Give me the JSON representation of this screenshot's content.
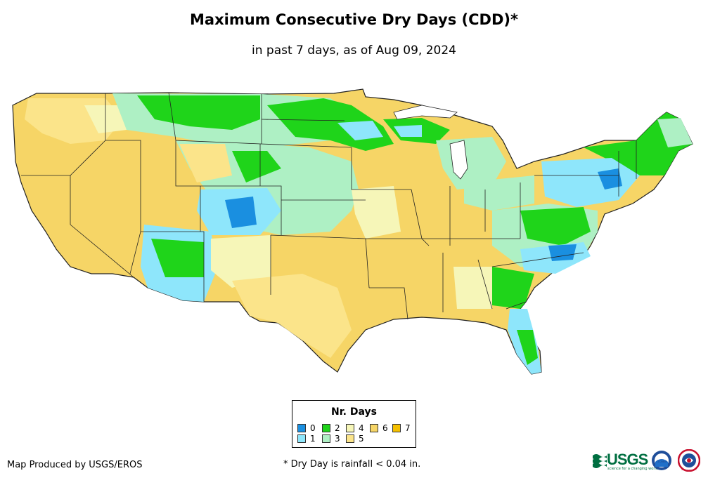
{
  "title": "Maximum Consecutive Dry Days (CDD)*",
  "subtitle": "in past 7 days, as of Aug 09, 2024",
  "legend": {
    "title": "Nr. Days",
    "items": [
      {
        "label": "0",
        "color": "#1a8fe0"
      },
      {
        "label": "1",
        "color": "#8ee6fb"
      },
      {
        "label": "2",
        "color": "#1fd41a"
      },
      {
        "label": "3",
        "color": "#aef0c4"
      },
      {
        "label": "4",
        "color": "#f6f6b8"
      },
      {
        "label": "5",
        "color": "#fbe48a"
      },
      {
        "label": "6",
        "color": "#f6d566"
      },
      {
        "label": "7",
        "color": "#f5c000"
      }
    ]
  },
  "credit": "Map Produced by USGS/EROS",
  "footnote": "* Dry Day is rainfall < 0.04 in.",
  "logos": {
    "usgs": "USGS",
    "usgs_tagline": "science for a changing world",
    "noaa": "noaa",
    "nws": "national weather service"
  },
  "colors": {
    "state_border": "#222222",
    "background": "#ffffff"
  }
}
